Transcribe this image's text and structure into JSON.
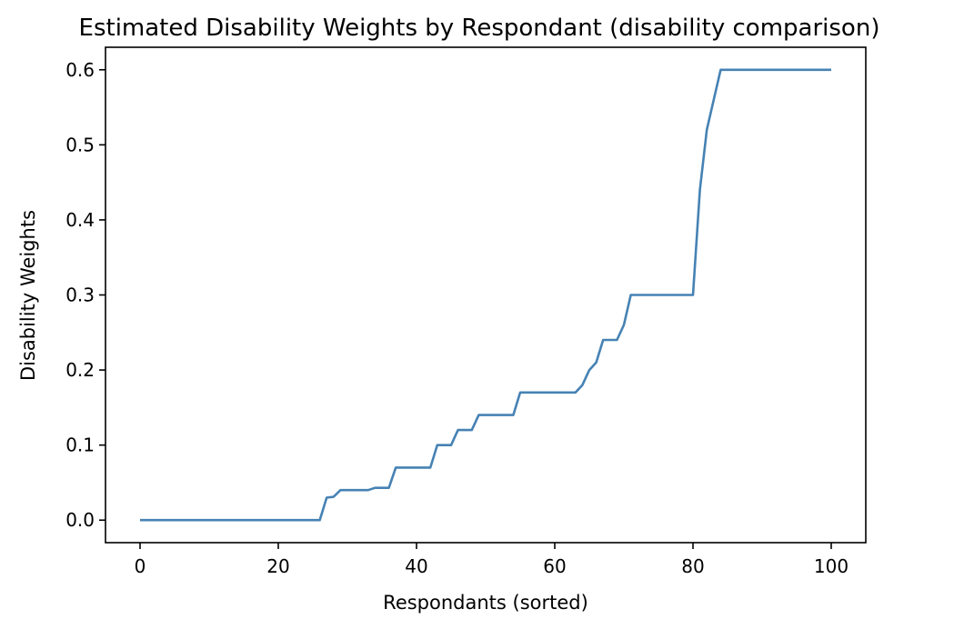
{
  "chart_data": {
    "type": "line",
    "title": "Estimated Disability Weights by Respondant (disability comparison)",
    "xlabel": "Respondants (sorted)",
    "ylabel": "Disability Weights",
    "xlim": [
      -5,
      105
    ],
    "ylim": [
      -0.03,
      0.63
    ],
    "xticks": [
      0,
      20,
      40,
      60,
      80,
      100
    ],
    "yticks": [
      0.0,
      0.1,
      0.2,
      0.3,
      0.4,
      0.5,
      0.6
    ],
    "xtick_labels": [
      "0",
      "20",
      "40",
      "60",
      "80",
      "100"
    ],
    "ytick_labels": [
      "0.0",
      "0.1",
      "0.2",
      "0.3",
      "0.4",
      "0.5",
      "0.6"
    ],
    "grid": false,
    "line_color": "#4682b4",
    "series": [
      {
        "x": [
          0,
          26,
          27,
          28,
          29,
          33,
          34,
          36,
          37,
          42,
          43,
          45,
          46,
          48,
          49,
          54,
          55,
          63,
          64,
          65,
          66,
          67,
          69,
          70,
          71,
          80,
          81,
          82,
          84,
          100
        ],
        "y": [
          0.0,
          0.0,
          0.03,
          0.031,
          0.04,
          0.04,
          0.043,
          0.043,
          0.07,
          0.07,
          0.1,
          0.1,
          0.12,
          0.12,
          0.14,
          0.14,
          0.17,
          0.17,
          0.18,
          0.2,
          0.21,
          0.24,
          0.24,
          0.26,
          0.3,
          0.3,
          0.44,
          0.52,
          0.6,
          0.6
        ]
      }
    ]
  }
}
